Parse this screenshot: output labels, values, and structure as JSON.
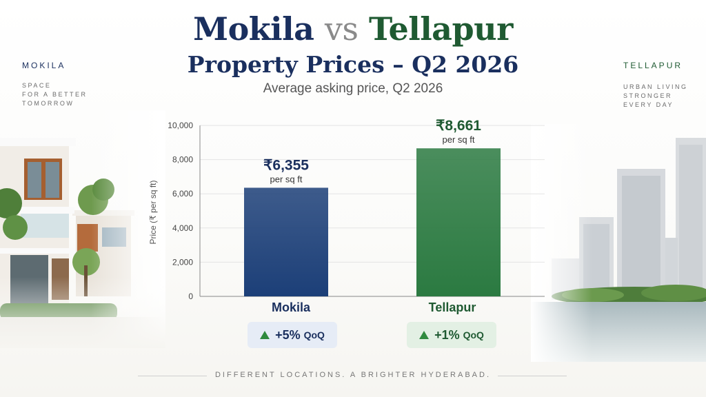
{
  "title": {
    "part1": "Mokila",
    "vs": "vs",
    "part2": "Tellapur",
    "line2": "Property Prices – Q2 2026",
    "subtitle": "Average asking price, Q2 2026"
  },
  "left_panel": {
    "name": "MOKILA",
    "tagline": [
      "SPACE",
      "FOR A BETTER",
      "TOMORROW"
    ]
  },
  "right_panel": {
    "name": "TELLAPUR",
    "tagline": [
      "URBAN LIVING",
      "STRONGER",
      "EVERY DAY"
    ]
  },
  "chart_data": {
    "type": "bar",
    "categories": [
      "Mokila",
      "Tellapur"
    ],
    "values": [
      6355,
      8661
    ],
    "value_labels": [
      "₹6,355",
      "₹8,661"
    ],
    "value_unit_label": "per sq ft",
    "ylabel": "Price (₹ per sq ft)",
    "ylim": [
      0,
      10000
    ],
    "yticks": [
      0,
      2000,
      4000,
      6000,
      8000,
      10000
    ],
    "ytick_labels": [
      "0",
      "2,000",
      "4,000",
      "6,000",
      "8,000",
      "10,000"
    ],
    "grid": true,
    "bar_colors": [
      "#1c3f78",
      "#2b7a41"
    ],
    "qoq": [
      {
        "value": "+5%",
        "unit": "QoQ",
        "bg": "#e6ecf6"
      },
      {
        "value": "+1%",
        "unit": "QoQ",
        "bg": "#e3f0e4"
      }
    ]
  },
  "colors": {
    "navy": "#1a2f5e",
    "green": "#1f5a32",
    "up_arrow": "#2f8a3e"
  },
  "footer": "DIFFERENT LOCATIONS. A BRIGHTER HYDERABAD."
}
